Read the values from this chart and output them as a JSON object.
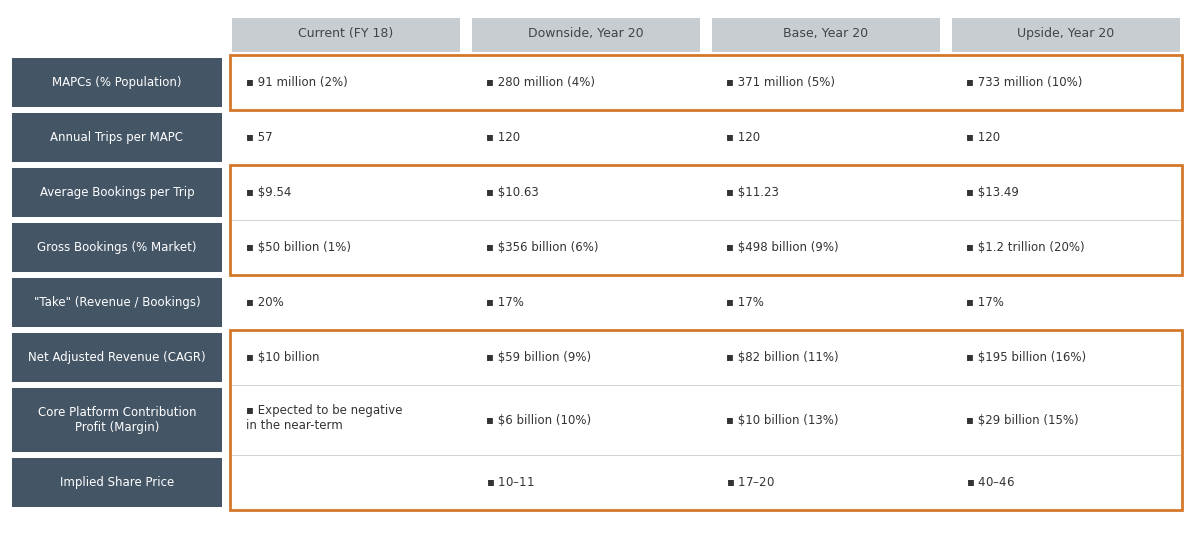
{
  "columns": [
    "Current (FY 18)",
    "Downside, Year 20",
    "Base, Year 20",
    "Upside, Year 20"
  ],
  "rows": [
    {
      "label": "MAPCs (% Population)",
      "values": [
        "91 million (2%)",
        "280 million (4%)",
        "371 million (5%)",
        "733 million (10%)"
      ],
      "orange_box": true,
      "two_line_label": false
    },
    {
      "label": "Annual Trips per MAPC",
      "values": [
        "57",
        "120",
        "120",
        "120"
      ],
      "orange_box": false,
      "two_line_label": false
    },
    {
      "label": "Average Bookings per Trip",
      "values": [
        "$9.54",
        "$10.63",
        "$11.23",
        "$13.49"
      ],
      "orange_box": true,
      "two_line_label": false
    },
    {
      "label": "Gross Bookings (% Market)",
      "values": [
        "$50 billion (1%)",
        "$356 billion (6%)",
        "$498 billion (9%)",
        "$1.2 trillion (20%)"
      ],
      "orange_box": true,
      "two_line_label": false
    },
    {
      "label": "\"Take\" (Revenue / Bookings)",
      "values": [
        "20%",
        "17%",
        "17%",
        "17%"
      ],
      "orange_box": false,
      "two_line_label": false
    },
    {
      "label": "Net Adjusted Revenue (CAGR)",
      "values": [
        "$10 billion",
        "$59 billion (9%)",
        "$82 billion (11%)",
        "$195 billion (16%)"
      ],
      "orange_box": true,
      "two_line_label": false
    },
    {
      "label": "Core Platform Contribution\nProfit (Margin)",
      "values": [
        "Expected to be negative\nin the near-term",
        "$6 billion (10%)",
        "$10 billion (13%)",
        "$29 billion (15%)"
      ],
      "orange_box": true,
      "two_line_label": true
    },
    {
      "label": "Implied Share Price",
      "values": [
        "",
        "$10 – $11",
        "$17 – $20",
        "$40 – $46"
      ],
      "orange_box": true,
      "two_line_label": false
    }
  ],
  "label_bg_color": "#445566",
  "header_bg_color": "#c8cdd2",
  "label_text_color": "#ffffff",
  "header_text_color": "#444444",
  "cell_text_color": "#333333",
  "orange_color": "#d4782a",
  "background_color": "#ffffff",
  "bullet": "▪",
  "fig_w": 11.95,
  "fig_h": 5.55,
  "dpi": 100
}
